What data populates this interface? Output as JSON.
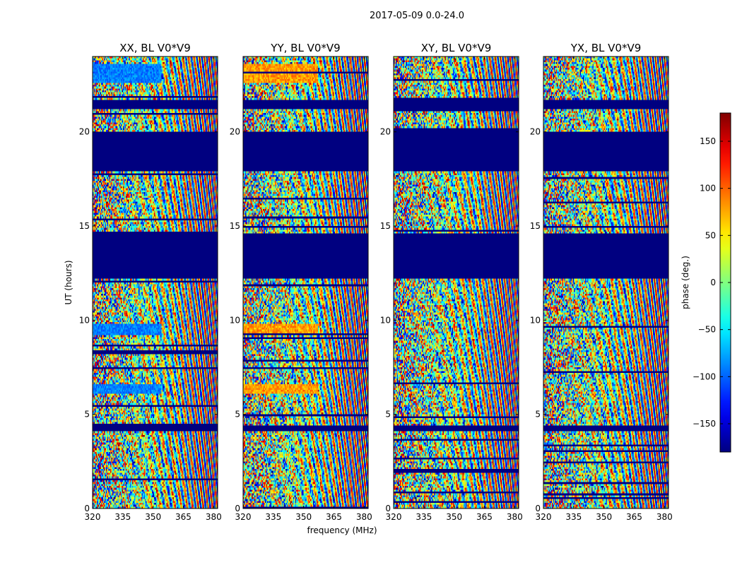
{
  "figure": {
    "title": "2017-05-09 0.0-24.0"
  },
  "chart_data": {
    "type": "heatmap",
    "xlabel": "frequency (MHz)",
    "ylabel": "UT (hours)",
    "xlim": [
      320,
      382
    ],
    "ylim": [
      0,
      24
    ],
    "x_ticks": [
      320,
      335,
      350,
      365,
      380
    ],
    "y_ticks": [
      0,
      5,
      10,
      15,
      20
    ],
    "colormap": "jet",
    "colorbar": {
      "label": "phase (deg.)",
      "range": [
        -180,
        180
      ],
      "ticks": [
        150,
        100,
        50,
        0,
        -50,
        -100,
        -150
      ],
      "tick_labels": [
        "150",
        "100",
        "50",
        "0",
        "−50",
        "−100",
        "−150"
      ]
    },
    "panels": [
      {
        "title": "XX, BL V0*V9",
        "mode": "XX"
      },
      {
        "title": "YY, BL V0*V9",
        "mode": "YY"
      },
      {
        "title": "XY, BL V0*V9",
        "mode": "XY"
      },
      {
        "title": "YX, BL V0*V9",
        "mode": "YX"
      }
    ],
    "flagged_ut_ranges_hours": [
      [
        17.9,
        20.0
      ],
      [
        12.2,
        14.6
      ],
      [
        4.1,
        4.4
      ],
      [
        21.2,
        21.7
      ]
    ],
    "flag_value_deg": -180
  }
}
